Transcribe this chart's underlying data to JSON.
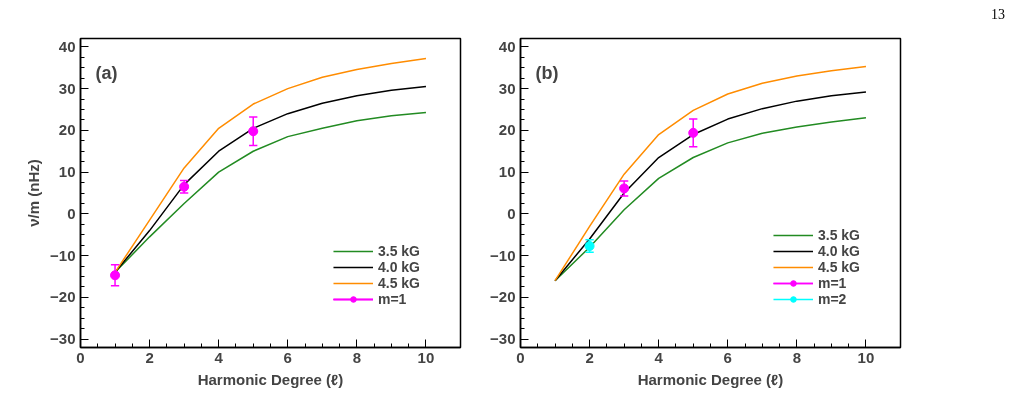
{
  "chart_data": [
    {
      "type": "line",
      "xlabel": "Harmonic Degree (ℓ)",
      "ylabel": "ν/m (nHz)",
      "annotations": [
        "(a)"
      ],
      "x": [
        1,
        2,
        3,
        4,
        5,
        6,
        7,
        8,
        9,
        10
      ],
      "xlim": [
        0,
        11
      ],
      "ylim": [
        -32,
        42
      ],
      "xticks": [
        0,
        2,
        4,
        6,
        8,
        10
      ],
      "yticks": [
        -30,
        -20,
        -10,
        0,
        10,
        20,
        30,
        40
      ],
      "grid": false,
      "legend": "bottom right",
      "series": [
        {
          "name": "3.5 kG",
          "color": "#228b22",
          "values": [
            -14,
            -5.5,
            2.5,
            10,
            15,
            18.5,
            20.5,
            22.3,
            23.5,
            24.3
          ]
        },
        {
          "name": "4.0 kG",
          "color": "#000000",
          "values": [
            -14,
            -4,
            7,
            15,
            20.5,
            24,
            26.5,
            28.3,
            29.6,
            30.5
          ]
        },
        {
          "name": "4.5 kG",
          "color": "#ff8c00",
          "values": [
            -14,
            -1.5,
            11,
            20.5,
            26.3,
            30,
            32.7,
            34.6,
            36,
            37.2
          ]
        },
        {
          "name": "m=1",
          "color": "#ff00ff",
          "type": "scatter",
          "marker": "circle",
          "x": [
            1,
            3,
            5
          ],
          "values": [
            -14.7,
            6.5,
            19.8
          ],
          "errors": [
            2.5,
            1.5,
            3.4
          ]
        }
      ]
    },
    {
      "type": "line",
      "xlabel": "Harmonic Degree (ℓ)",
      "annotations": [
        "(b)",
        "13"
      ],
      "x": [
        1,
        2,
        3,
        4,
        5,
        6,
        7,
        8,
        9,
        10
      ],
      "xlim": [
        0,
        11
      ],
      "ylim": [
        -32,
        42
      ],
      "xticks": [
        0,
        2,
        4,
        6,
        8,
        10
      ],
      "yticks": [
        -30,
        -20,
        -10,
        0,
        10,
        20,
        30,
        40
      ],
      "grid": false,
      "legend": "bottom right",
      "series": [
        {
          "name": "3.5 kG",
          "color": "#228b22",
          "values": [
            -16,
            -8,
            1,
            8.5,
            13.5,
            17,
            19.3,
            20.8,
            22,
            23
          ]
        },
        {
          "name": "4.0 kG",
          "color": "#000000",
          "values": [
            -16,
            -6,
            5,
            13.5,
            19,
            22.7,
            25.2,
            27,
            28.3,
            29.2
          ]
        },
        {
          "name": "4.5 kG",
          "color": "#ff8c00",
          "values": [
            -16,
            -3,
            9.5,
            19,
            24.8,
            28.7,
            31.3,
            33,
            34.3,
            35.3
          ]
        },
        {
          "name": "m=1",
          "color": "#ff00ff",
          "type": "scatter",
          "marker": "circle",
          "x": [
            3,
            5
          ],
          "values": [
            6.1,
            19.4
          ],
          "errors": [
            1.8,
            3.3
          ]
        },
        {
          "name": "m=2",
          "color": "#00ffff",
          "type": "scatter",
          "marker": "circle",
          "x": [
            2
          ],
          "values": [
            -7.7
          ],
          "errors": [
            1.5
          ]
        }
      ]
    }
  ]
}
